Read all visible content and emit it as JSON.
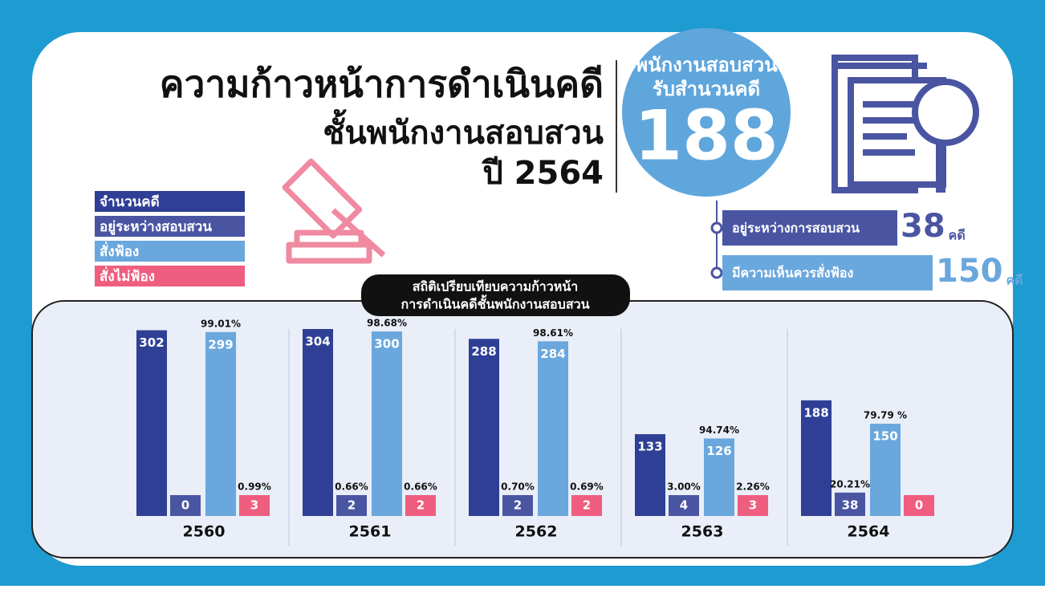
{
  "chart_data": {
    "type": "bar",
    "title": [
      "ความก้าวหน้าการดำเนินคดี",
      "ชั้นพนักงานสอบสวน",
      "ปี 2564"
    ],
    "highlight": {
      "label": [
        "พนักงานสอบสวน",
        "รับสำนวนคดี"
      ],
      "value": 188
    },
    "summary": [
      {
        "label": "อยู่ระหว่างการสอบสวน",
        "value": 38,
        "unit": "คดี",
        "color": "#4a55a2"
      },
      {
        "label": "มีความเห็นควรสั่งฟ้อง",
        "value": 150,
        "unit": "คดี",
        "color": "#6aa7dd"
      }
    ],
    "section_title": [
      "สถิติเปรียบเทียบความก้าวหน้า",
      "การดำเนินคดีชั้นพนักงานสอบสวน"
    ],
    "categories": [
      "2560",
      "2561",
      "2562",
      "2563",
      "2564"
    ],
    "series": [
      {
        "name": "จำนวนคดี",
        "color": "#2e3f95",
        "values": [
          302,
          304,
          288,
          133,
          188
        ],
        "annotations": [
          null,
          null,
          null,
          null,
          null
        ]
      },
      {
        "name": "อยู่ระหว่างสอบสวน",
        "color": "#4a55a2",
        "values": [
          0,
          2,
          2,
          4,
          38
        ],
        "annotations": [
          null,
          "0.66%",
          "0.70%",
          "3.00%",
          "20.21%"
        ]
      },
      {
        "name": "สั่งฟ้อง",
        "color": "#6aa7dd",
        "values": [
          299,
          300,
          284,
          126,
          150
        ],
        "annotations": [
          "99.01%",
          "98.68%",
          "98.61%",
          "94.74%",
          "79.79 %"
        ]
      },
      {
        "name": "สั่งไม่ฟ้อง",
        "color": "#ef5d7f",
        "values": [
          3,
          2,
          2,
          3,
          0
        ],
        "annotations": [
          "0.99%",
          "0.66%",
          "0.69%",
          "2.26%",
          null
        ]
      }
    ]
  }
}
